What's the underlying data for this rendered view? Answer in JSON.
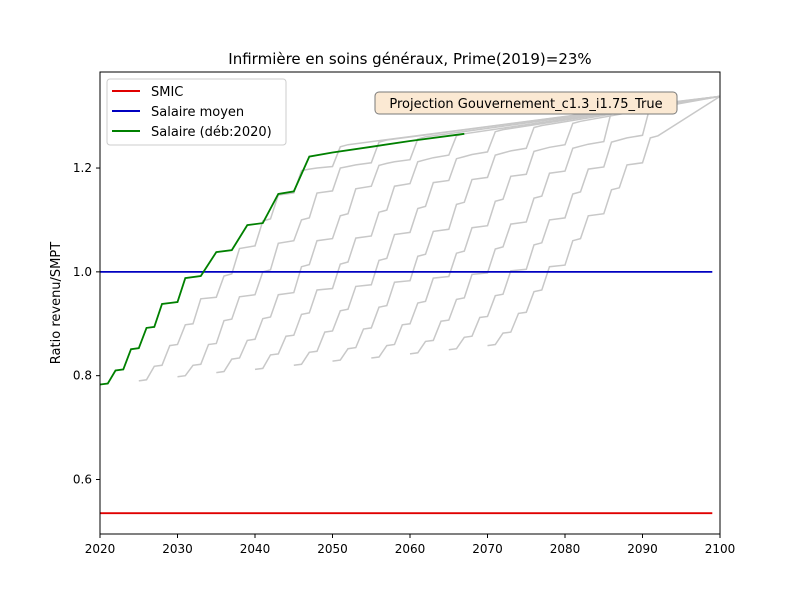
{
  "chart_data": {
    "type": "line",
    "title": "Infirmière en soins généraux, Prime(2019)=23%",
    "xlabel": "",
    "ylabel": "Ratio revenu/SMPT",
    "xlim": [
      2020,
      2100
    ],
    "ylim": [
      0.495,
      1.385
    ],
    "x_ticks": [
      2020,
      2030,
      2040,
      2050,
      2060,
      2070,
      2080,
      2090,
      2100
    ],
    "y_ticks": [
      0.6,
      0.8,
      1.0,
      1.2
    ],
    "x_tick_labels": [
      "2020",
      "2030",
      "2040",
      "2050",
      "2060",
      "2070",
      "2080",
      "2090",
      "2100"
    ],
    "y_tick_labels": [
      "0.6",
      "0.8",
      "1.0",
      "1.2"
    ],
    "grid": false,
    "legend_position": "top-left",
    "annotation": "Projection Gouvernement_c1.3_i1.75_True",
    "colors": {
      "smic": "#e00000",
      "salaire_moyen": "#0000c0",
      "salaire_deb2020": "#008000",
      "cohorts": "#c8c8c8",
      "annotation_bg": "#fbe9d3",
      "annotation_border": "#7a7a7a"
    },
    "series": [
      {
        "name": "SMIC",
        "key": "smic",
        "x": [
          2020,
          2099
        ],
        "y": [
          0.535,
          0.535
        ]
      },
      {
        "name": "Salaire moyen",
        "key": "salaire_moyen",
        "x": [
          2020,
          2099
        ],
        "y": [
          1.0,
          1.0
        ]
      },
      {
        "name": "Salaire (déb:2020)",
        "key": "salaire_deb2020",
        "x": [
          2020,
          2021,
          2022,
          2023,
          2024,
          2025,
          2026,
          2027,
          2028,
          2029,
          2030,
          2031,
          2033,
          2035,
          2037,
          2039,
          2041,
          2043,
          2045,
          2047,
          2050,
          2055,
          2060,
          2067
        ],
        "y": [
          0.783,
          0.785,
          0.81,
          0.812,
          0.851,
          0.853,
          0.892,
          0.894,
          0.938,
          0.94,
          0.942,
          0.988,
          0.992,
          1.038,
          1.042,
          1.09,
          1.094,
          1.15,
          1.155,
          1.222,
          1.23,
          1.241,
          1.252,
          1.266
        ]
      }
    ],
    "cohort_series": [
      {
        "start": 2025,
        "x": [
          2025,
          2026,
          2027,
          2028,
          2029,
          2030,
          2031,
          2032,
          2033,
          2035,
          2036,
          2037,
          2038,
          2040,
          2041,
          2042,
          2043,
          2045,
          2046,
          2047,
          2048,
          2050,
          2051,
          2052,
          2100
        ],
        "y": [
          0.79,
          0.792,
          0.818,
          0.82,
          0.858,
          0.86,
          0.898,
          0.9,
          0.948,
          0.951,
          0.992,
          0.996,
          1.045,
          1.05,
          1.098,
          1.102,
          1.148,
          1.152,
          1.195,
          1.198,
          1.2,
          1.203,
          1.241,
          1.245,
          1.338
        ]
      },
      {
        "start": 2030,
        "x": [
          2030,
          2031,
          2032,
          2033,
          2034,
          2035,
          2036,
          2037,
          2038,
          2040,
          2041,
          2042,
          2043,
          2045,
          2046,
          2047,
          2048,
          2050,
          2051,
          2052,
          2053,
          2055,
          2056,
          2057,
          2100
        ],
        "y": [
          0.798,
          0.8,
          0.82,
          0.822,
          0.86,
          0.862,
          0.906,
          0.909,
          0.952,
          0.956,
          1.0,
          1.004,
          1.055,
          1.06,
          1.1,
          1.104,
          1.152,
          1.156,
          1.2,
          1.203,
          1.206,
          1.21,
          1.25,
          1.254,
          1.338
        ]
      },
      {
        "start": 2035,
        "x": [
          2035,
          2036,
          2037,
          2038,
          2039,
          2040,
          2041,
          2042,
          2043,
          2045,
          2046,
          2047,
          2048,
          2050,
          2051,
          2052,
          2053,
          2055,
          2056,
          2057,
          2058,
          2060,
          2061,
          2062,
          2100
        ],
        "y": [
          0.806,
          0.808,
          0.832,
          0.834,
          0.868,
          0.87,
          0.91,
          0.913,
          0.956,
          0.96,
          1.01,
          1.014,
          1.06,
          1.064,
          1.108,
          1.112,
          1.16,
          1.165,
          1.205,
          1.209,
          1.212,
          1.216,
          1.256,
          1.26,
          1.338
        ]
      },
      {
        "start": 2040,
        "x": [
          2040,
          2041,
          2042,
          2043,
          2044,
          2045,
          2046,
          2047,
          2048,
          2050,
          2051,
          2052,
          2053,
          2055,
          2056,
          2057,
          2058,
          2060,
          2061,
          2062,
          2063,
          2065,
          2066,
          2067,
          2100
        ],
        "y": [
          0.812,
          0.814,
          0.84,
          0.842,
          0.876,
          0.878,
          0.918,
          0.921,
          0.965,
          0.968,
          1.015,
          1.019,
          1.065,
          1.069,
          1.115,
          1.119,
          1.165,
          1.17,
          1.212,
          1.216,
          1.22,
          1.225,
          1.262,
          1.266,
          1.338
        ]
      },
      {
        "start": 2045,
        "x": [
          2045,
          2046,
          2047,
          2048,
          2049,
          2050,
          2051,
          2052,
          2053,
          2055,
          2056,
          2057,
          2058,
          2060,
          2061,
          2062,
          2063,
          2065,
          2066,
          2067,
          2068,
          2070,
          2071,
          2072,
          2100
        ],
        "y": [
          0.82,
          0.822,
          0.845,
          0.847,
          0.884,
          0.886,
          0.925,
          0.928,
          0.972,
          0.975,
          1.022,
          1.026,
          1.072,
          1.076,
          1.122,
          1.126,
          1.172,
          1.176,
          1.218,
          1.222,
          1.226,
          1.231,
          1.27,
          1.274,
          1.338
        ]
      },
      {
        "start": 2050,
        "x": [
          2050,
          2051,
          2052,
          2053,
          2054,
          2055,
          2056,
          2057,
          2058,
          2060,
          2061,
          2062,
          2063,
          2065,
          2066,
          2067,
          2068,
          2070,
          2071,
          2072,
          2073,
          2075,
          2076,
          2077,
          2100
        ],
        "y": [
          0.828,
          0.83,
          0.852,
          0.854,
          0.89,
          0.892,
          0.932,
          0.935,
          0.98,
          0.983,
          1.03,
          1.034,
          1.078,
          1.082,
          1.13,
          1.134,
          1.178,
          1.182,
          1.225,
          1.229,
          1.233,
          1.238,
          1.278,
          1.282,
          1.338
        ]
      },
      {
        "start": 2055,
        "x": [
          2055,
          2056,
          2057,
          2058,
          2059,
          2060,
          2061,
          2062,
          2063,
          2065,
          2066,
          2067,
          2068,
          2070,
          2071,
          2072,
          2073,
          2075,
          2076,
          2077,
          2078,
          2080,
          2081,
          2082,
          2100
        ],
        "y": [
          0.834,
          0.836,
          0.858,
          0.86,
          0.898,
          0.9,
          0.94,
          0.943,
          0.988,
          0.991,
          1.036,
          1.04,
          1.085,
          1.089,
          1.136,
          1.14,
          1.184,
          1.188,
          1.232,
          1.236,
          1.24,
          1.245,
          1.286,
          1.29,
          1.338
        ]
      },
      {
        "start": 2060,
        "x": [
          2060,
          2061,
          2062,
          2063,
          2064,
          2065,
          2066,
          2067,
          2068,
          2070,
          2071,
          2072,
          2073,
          2075,
          2076,
          2077,
          2078,
          2080,
          2081,
          2082,
          2083,
          2085,
          2086,
          2087,
          2100
        ],
        "y": [
          0.842,
          0.844,
          0.866,
          0.868,
          0.905,
          0.907,
          0.947,
          0.95,
          0.995,
          0.998,
          1.044,
          1.048,
          1.092,
          1.096,
          1.142,
          1.146,
          1.19,
          1.194,
          1.238,
          1.242,
          1.246,
          1.251,
          1.31,
          1.314,
          1.338
        ]
      },
      {
        "start": 2065,
        "x": [
          2065,
          2066,
          2067,
          2068,
          2069,
          2070,
          2071,
          2072,
          2073,
          2075,
          2076,
          2077,
          2078,
          2080,
          2081,
          2082,
          2083,
          2085,
          2086,
          2087,
          2088,
          2090,
          2091,
          2092,
          2100
        ],
        "y": [
          0.85,
          0.852,
          0.874,
          0.876,
          0.912,
          0.914,
          0.954,
          0.957,
          1.002,
          1.005,
          1.052,
          1.056,
          1.1,
          1.104,
          1.15,
          1.154,
          1.198,
          1.202,
          1.25,
          1.254,
          1.258,
          1.263,
          1.32,
          1.324,
          1.338
        ]
      },
      {
        "start": 2070,
        "x": [
          2070,
          2071,
          2072,
          2073,
          2074,
          2075,
          2076,
          2077,
          2078,
          2080,
          2081,
          2082,
          2083,
          2085,
          2086,
          2087,
          2088,
          2090,
          2091,
          2092,
          2100
        ],
        "y": [
          0.858,
          0.86,
          0.882,
          0.884,
          0.92,
          0.922,
          0.962,
          0.965,
          1.01,
          1.013,
          1.06,
          1.064,
          1.108,
          1.112,
          1.158,
          1.162,
          1.206,
          1.21,
          1.258,
          1.262,
          1.338
        ]
      }
    ]
  }
}
